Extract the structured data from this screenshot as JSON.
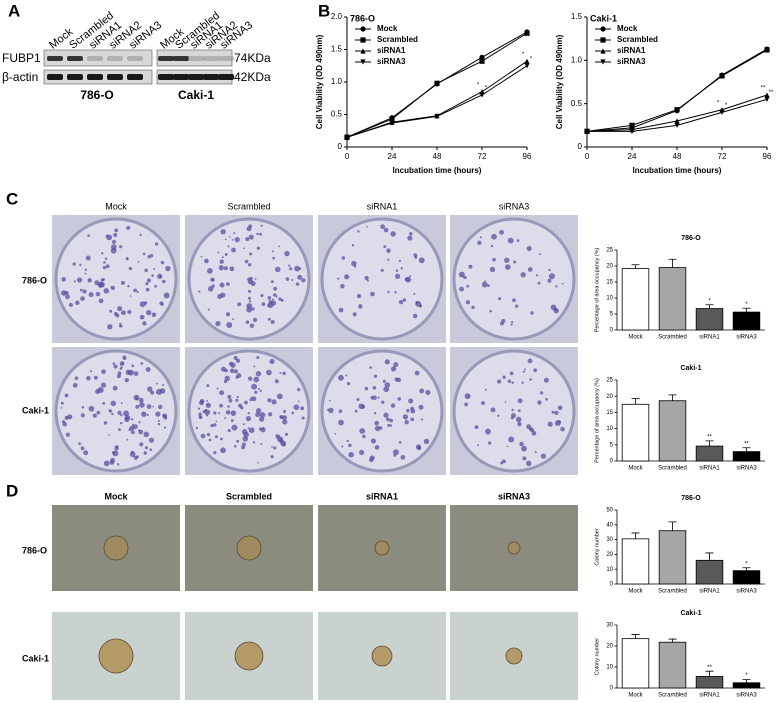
{
  "panel_labels": [
    "A",
    "B",
    "C",
    "D"
  ],
  "western_blot": {
    "lanes": [
      "Mock",
      "Scrambled",
      "siRNA1",
      "siRNA2",
      "siRNA3",
      "Mock",
      "Scrambled",
      "siRNA1",
      "siRNA2",
      "siRNA3"
    ],
    "rows": [
      "FUBP1",
      "β-actin"
    ],
    "sizes": [
      "74KDa",
      "42KDa"
    ],
    "groups": [
      "786-O",
      "Caki-1"
    ]
  },
  "colony_images": {
    "columns": [
      "Mock",
      "Scrambled",
      "siRNA1",
      "siRNA3"
    ],
    "rows": [
      "786-O",
      "Caki-1"
    ]
  },
  "spheroid_images": {
    "columns": [
      "Mock",
      "Scrambled",
      "siRNA1",
      "siRNA3"
    ],
    "rows": [
      "786-O",
      "Caki-1"
    ]
  },
  "chart_data": [
    {
      "type": "line",
      "title": "786-O",
      "x": [
        0,
        24,
        48,
        72,
        96
      ],
      "xlim": [
        0,
        96
      ],
      "xticks": [
        0,
        24,
        48,
        72,
        96
      ],
      "ylim": [
        0,
        2
      ],
      "yticks": [
        0,
        0.5,
        {
          "value": 1,
          "label": "1.0"
        },
        1.5,
        {
          "value": 2,
          "label": "2.0"
        }
      ],
      "xlabel": "Incubation time (hours)",
      "ylabel": "Cell Viability (OD 490nm)",
      "legend": "upper left",
      "series": [
        {
          "name": "Mock",
          "color": "#000000",
          "marker": "circle",
          "values": [
            0.15,
            0.45,
            0.97,
            1.38,
            1.77
          ],
          "significance": [
            null,
            null,
            null,
            null,
            null
          ]
        },
        {
          "name": "Scrambled",
          "color": "#000000",
          "marker": "square",
          "values": [
            0.15,
            0.43,
            0.98,
            1.32,
            1.75
          ],
          "significance": [
            null,
            null,
            null,
            null,
            null
          ]
        },
        {
          "name": "siRNA1",
          "color": "#000000",
          "marker": "triangle-up",
          "values": [
            0.15,
            0.38,
            0.48,
            0.85,
            1.32
          ],
          "significance": [
            null,
            null,
            null,
            "*",
            "*"
          ]
        },
        {
          "name": "siRNA3",
          "color": "#000000",
          "marker": "triangle-down",
          "values": [
            0.15,
            0.37,
            0.47,
            0.8,
            1.25
          ],
          "significance": [
            null,
            null,
            null,
            "*",
            "*"
          ]
        }
      ]
    },
    {
      "type": "line",
      "title": "Caki-1",
      "x": [
        0,
        24,
        48,
        72,
        96
      ],
      "xlim": [
        0,
        96
      ],
      "xticks": [
        0,
        24,
        48,
        72,
        96
      ],
      "ylim": [
        0,
        1.5
      ],
      "yticks": [
        0,
        0.5,
        {
          "value": 1,
          "label": "1.0"
        },
        1.5
      ],
      "xlabel": "Incubation time (hours)",
      "ylabel": "Cell Viability (OD 490nm)",
      "legend": "upper left",
      "series": [
        {
          "name": "Mock",
          "color": "#000000",
          "marker": "circle",
          "values": [
            0.18,
            0.22,
            0.42,
            0.83,
            1.13
          ],
          "significance": [
            null,
            null,
            null,
            null,
            null
          ]
        },
        {
          "name": "Scrambled",
          "color": "#000000",
          "marker": "square",
          "values": [
            0.18,
            0.25,
            0.43,
            0.82,
            1.12
          ],
          "significance": [
            null,
            null,
            null,
            null,
            null
          ]
        },
        {
          "name": "siRNA1",
          "color": "#000000",
          "marker": "triangle-up",
          "values": [
            0.18,
            0.2,
            0.3,
            0.43,
            0.6
          ],
          "significance": [
            null,
            null,
            null,
            "*",
            "**"
          ]
        },
        {
          "name": "siRNA3",
          "color": "#000000",
          "marker": "triangle-down",
          "values": [
            0.18,
            0.18,
            0.25,
            0.4,
            0.55
          ],
          "significance": [
            null,
            null,
            null,
            "*",
            "**"
          ]
        }
      ]
    },
    {
      "type": "bar",
      "title": "786-O",
      "categories": [
        "Mock",
        "Scrambled",
        "siRNA1",
        "siRNA3"
      ],
      "values": [
        19.2,
        19.5,
        6.7,
        5.6
      ],
      "errors": [
        1.2,
        2.6,
        1.2,
        1.2
      ],
      "colors": [
        "#ffffff",
        "#a6a6a6",
        "#595959",
        "#000000"
      ],
      "significance": [
        null,
        null,
        "*",
        "*"
      ],
      "ylim": [
        0,
        25
      ],
      "yticks": [
        0,
        5,
        10,
        15,
        20,
        25
      ],
      "ylabel": "Percentage of area occupancy (%)"
    },
    {
      "type": "bar",
      "title": "Caki-1",
      "categories": [
        "Mock",
        "Scrambled",
        "siRNA1",
        "siRNA3"
      ],
      "values": [
        17.5,
        18.6,
        4.6,
        2.9
      ],
      "errors": [
        1.8,
        1.8,
        1.6,
        1.2
      ],
      "colors": [
        "#ffffff",
        "#a6a6a6",
        "#595959",
        "#000000"
      ],
      "significance": [
        null,
        null,
        "**",
        "**"
      ],
      "ylim": [
        0,
        25
      ],
      "yticks": [
        0,
        5,
        10,
        15,
        20,
        25
      ],
      "ylabel": "Percentage of area occupancy (%)"
    },
    {
      "type": "bar",
      "title": "786-O",
      "categories": [
        "Mock",
        "Scrambled",
        "siRNA1",
        "siRNA3"
      ],
      "values": [
        30.5,
        36,
        16,
        9
      ],
      "errors": [
        4,
        6,
        5,
        2
      ],
      "colors": [
        "#ffffff",
        "#a6a6a6",
        "#595959",
        "#000000"
      ],
      "significance": [
        null,
        null,
        null,
        "*"
      ],
      "ylim": [
        0,
        50
      ],
      "yticks": [
        0,
        10,
        20,
        30,
        40,
        50
      ],
      "ylabel": "Colony number"
    },
    {
      "type": "bar",
      "title": "Caki-1",
      "categories": [
        "Mock",
        "Scrambled",
        "siRNA1",
        "siRNA3"
      ],
      "values": [
        23.5,
        21.8,
        5.5,
        2.5
      ],
      "errors": [
        2,
        1.5,
        2.5,
        1.5
      ],
      "colors": [
        "#ffffff",
        "#a6a6a6",
        "#595959",
        "#000000"
      ],
      "significance": [
        null,
        null,
        "**",
        "*"
      ],
      "ylim": [
        0,
        30
      ],
      "yticks": [
        0,
        10,
        20,
        30
      ],
      "ylabel": "Colony number"
    }
  ]
}
